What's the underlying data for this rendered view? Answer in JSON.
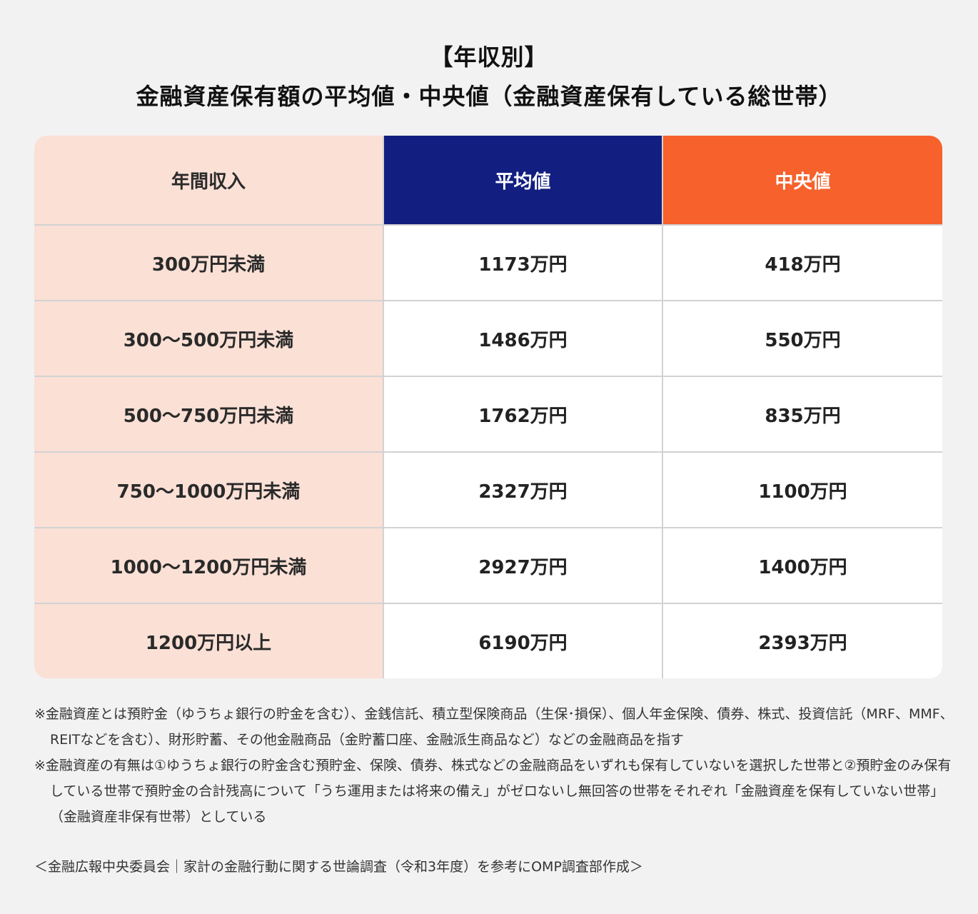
{
  "title": {
    "line1": "【年収別】",
    "line2": "金融資産保有額の平均値・中央値（金融資産保有している総世帯）"
  },
  "colors": {
    "background": "#f2f2f2",
    "income_column": "#fbe0d6",
    "mean_header": "#121f80",
    "median_header": "#f7612c",
    "cell": "#ffffff",
    "grid": "#d2d2d2"
  },
  "table": {
    "headers": [
      "年間収入",
      "平均値",
      "中央値"
    ],
    "rows": [
      {
        "income": "300万円未満",
        "mean": "1173万円",
        "median": "418万円"
      },
      {
        "income": "300〜500万円未満",
        "mean": "1486万円",
        "median": "550万円"
      },
      {
        "income": "500〜750万円未満",
        "mean": "1762万円",
        "median": "835万円"
      },
      {
        "income": "750〜1000万円未満",
        "mean": "2327万円",
        "median": "1100万円"
      },
      {
        "income": "1000〜1200万円未満",
        "mean": "2927万円",
        "median": "1400万円"
      },
      {
        "income": "1200万円以上",
        "mean": "6190万円",
        "median": "2393万円"
      }
    ]
  },
  "notes": [
    "※金融資産とは預貯金（ゆうちょ銀行の貯金を含む）、金銭信託、積立型保険商品（生保･損保）、個人年金保険、債券、株式、投資信託（MRF、MMF、REITなどを含む）、財形貯蓄、その他金融商品（金貯蓄口座、金融派生商品など）などの金融商品を指す",
    "※金融資産の有無は①ゆうちょ銀行の貯金含む預貯金、保険、債券、株式などの金融商品をいずれも保有していないを選択した世帯と②預貯金のみ保有している世帯で預貯金の合計残高について「うち運用または将来の備え」がゼロないし無回答の世帯をそれぞれ「金融資産を保有していない世帯」（金融資産非保有世帯）としている"
  ],
  "source": "＜金融広報中央委員会｜家計の金融行動に関する世論調査（令和3年度）を参考にOMP調査部作成＞"
}
